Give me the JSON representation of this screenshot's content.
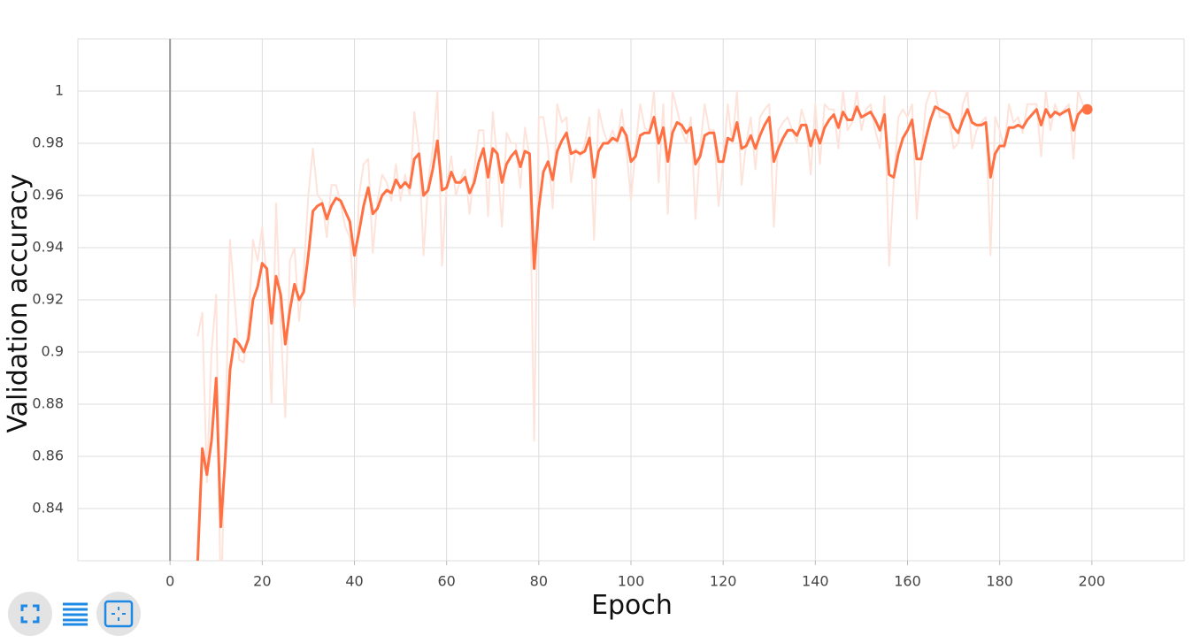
{
  "chart_data": {
    "type": "line",
    "x_label": "Epoch",
    "y_label": "Validation accuracy",
    "xlim": [
      -20,
      220
    ],
    "ylim": [
      0.82,
      1.02
    ],
    "xticks": [
      0,
      20,
      40,
      60,
      80,
      100,
      120,
      140,
      160,
      180,
      200
    ],
    "yticks": [
      0.84,
      0.86,
      0.88,
      0.9,
      0.92,
      0.94,
      0.96,
      0.98,
      1
    ],
    "grid": true,
    "x": [
      6,
      7,
      8,
      9,
      10,
      11,
      12,
      13,
      14,
      15,
      16,
      17,
      18,
      19,
      20,
      21,
      22,
      23,
      24,
      25,
      26,
      27,
      28,
      29,
      30,
      31,
      32,
      33,
      34,
      35,
      36,
      37,
      38,
      39,
      40,
      41,
      42,
      43,
      44,
      45,
      46,
      47,
      48,
      49,
      50,
      51,
      52,
      53,
      54,
      55,
      56,
      57,
      58,
      59,
      60,
      61,
      62,
      63,
      64,
      65,
      66,
      67,
      68,
      69,
      70,
      71,
      72,
      73,
      74,
      75,
      76,
      77,
      78,
      79,
      80,
      81,
      82,
      83,
      84,
      85,
      86,
      87,
      88,
      89,
      90,
      91,
      92,
      93,
      94,
      95,
      96,
      97,
      98,
      99,
      100,
      101,
      102,
      103,
      104,
      105,
      106,
      107,
      108,
      109,
      110,
      111,
      112,
      113,
      114,
      115,
      116,
      117,
      118,
      119,
      120,
      121,
      122,
      123,
      124,
      125,
      126,
      127,
      128,
      129,
      130,
      131,
      132,
      133,
      134,
      135,
      136,
      137,
      138,
      139,
      140,
      141,
      142,
      143,
      144,
      145,
      146,
      147,
      148,
      149,
      150,
      151,
      152,
      153,
      154,
      155,
      156,
      157,
      158,
      159,
      160,
      161,
      162,
      163,
      164,
      165,
      166,
      167,
      168,
      169,
      170,
      171,
      172,
      173,
      174,
      175,
      176,
      177,
      178,
      179,
      180,
      181,
      182,
      183,
      184,
      185,
      186,
      187,
      188,
      189,
      190,
      191,
      192,
      193,
      194,
      195,
      196,
      197,
      198,
      199
    ],
    "series": [
      {
        "color": "#fde3da",
        "values": [
          0.906,
          0.915,
          0.85,
          0.9,
          0.922,
          0.8,
          0.87,
          0.943,
          0.92,
          0.897,
          0.896,
          0.91,
          0.943,
          0.935,
          0.948,
          0.928,
          0.88,
          0.957,
          0.91,
          0.875,
          0.935,
          0.94,
          0.912,
          0.93,
          0.96,
          0.978,
          0.96,
          0.958,
          0.944,
          0.964,
          0.964,
          0.957,
          0.948,
          0.944,
          0.917,
          0.96,
          0.972,
          0.974,
          0.938,
          0.958,
          0.968,
          0.965,
          0.958,
          0.972,
          0.958,
          0.968,
          0.96,
          0.992,
          0.978,
          0.937,
          0.965,
          0.978,
          1.0,
          0.933,
          0.964,
          0.975,
          0.96,
          0.966,
          0.97,
          0.953,
          0.97,
          0.985,
          0.985,
          0.952,
          0.992,
          0.973,
          0.948,
          0.984,
          0.98,
          0.98,
          0.963,
          0.986,
          0.975,
          0.866,
          0.99,
          0.99,
          0.978,
          0.955,
          0.995,
          0.988,
          0.99,
          0.965,
          0.978,
          0.975,
          0.98,
          0.99,
          0.943,
          0.993,
          0.985,
          0.98,
          0.985,
          0.98,
          0.993,
          0.978,
          0.958,
          0.978,
          0.995,
          0.986,
          0.984,
          1.0,
          0.965,
          0.995,
          0.953,
          1.0,
          0.993,
          0.985,
          0.98,
          0.99,
          0.951,
          0.978,
          0.995,
          0.985,
          0.985,
          0.956,
          0.973,
          0.995,
          0.98,
          1.0,
          0.964,
          0.98,
          0.99,
          0.97,
          0.99,
          0.993,
          0.995,
          0.948,
          0.985,
          0.988,
          0.99,
          0.985,
          0.98,
          0.993,
          0.987,
          0.968,
          0.995,
          0.972,
          0.995,
          0.993,
          0.993,
          0.978,
          1.0,
          0.985,
          0.988,
          1.0,
          0.985,
          0.993,
          0.995,
          0.985,
          0.978,
          0.998,
          0.933,
          0.965,
          0.99,
          0.993,
          0.99,
          0.995,
          0.951,
          0.975,
          0.995,
          1.0,
          1.0,
          0.99,
          0.99,
          0.99,
          0.978,
          0.98,
          0.995,
          1.0,
          0.978,
          0.985,
          0.988,
          0.99,
          0.937,
          0.99,
          0.985,
          0.978,
          0.995,
          0.988,
          0.99,
          0.984,
          0.995,
          0.995,
          0.995,
          0.975,
          1.0,
          0.985,
          0.995,
          0.99,
          0.993,
          0.995,
          0.974,
          1.0,
          0.995,
          0.993
        ]
      },
      {
        "color": "#ff7043",
        "values": [
          0.82,
          0.863,
          0.853,
          0.866,
          0.89,
          0.833,
          0.86,
          0.893,
          0.905,
          0.903,
          0.9,
          0.905,
          0.92,
          0.925,
          0.934,
          0.932,
          0.911,
          0.929,
          0.922,
          0.903,
          0.916,
          0.926,
          0.92,
          0.923,
          0.937,
          0.954,
          0.956,
          0.957,
          0.951,
          0.956,
          0.959,
          0.958,
          0.954,
          0.95,
          0.937,
          0.946,
          0.956,
          0.963,
          0.953,
          0.955,
          0.96,
          0.962,
          0.961,
          0.966,
          0.963,
          0.965,
          0.963,
          0.974,
          0.976,
          0.96,
          0.962,
          0.97,
          0.981,
          0.962,
          0.963,
          0.969,
          0.965,
          0.965,
          0.967,
          0.961,
          0.965,
          0.973,
          0.978,
          0.967,
          0.978,
          0.976,
          0.965,
          0.972,
          0.975,
          0.977,
          0.971,
          0.977,
          0.976,
          0.932,
          0.955,
          0.969,
          0.973,
          0.966,
          0.977,
          0.981,
          0.984,
          0.976,
          0.977,
          0.976,
          0.977,
          0.982,
          0.967,
          0.977,
          0.98,
          0.98,
          0.982,
          0.981,
          0.986,
          0.983,
          0.973,
          0.975,
          0.983,
          0.984,
          0.984,
          0.99,
          0.98,
          0.986,
          0.973,
          0.984,
          0.988,
          0.987,
          0.984,
          0.986,
          0.972,
          0.975,
          0.983,
          0.984,
          0.984,
          0.973,
          0.973,
          0.982,
          0.981,
          0.988,
          0.978,
          0.979,
          0.983,
          0.978,
          0.983,
          0.987,
          0.99,
          0.973,
          0.978,
          0.982,
          0.985,
          0.985,
          0.983,
          0.987,
          0.987,
          0.979,
          0.985,
          0.98,
          0.986,
          0.989,
          0.991,
          0.986,
          0.992,
          0.989,
          0.989,
          0.994,
          0.99,
          0.991,
          0.992,
          0.989,
          0.985,
          0.991,
          0.968,
          0.967,
          0.976,
          0.982,
          0.985,
          0.989,
          0.974,
          0.974,
          0.982,
          0.989,
          0.994,
          0.993,
          0.992,
          0.991,
          0.986,
          0.984,
          0.989,
          0.993,
          0.988,
          0.987,
          0.987,
          0.988,
          0.967,
          0.976,
          0.979,
          0.979,
          0.986,
          0.986,
          0.987,
          0.986,
          0.989,
          0.991,
          0.993,
          0.987,
          0.993,
          0.99,
          0.992,
          0.991,
          0.992,
          0.993,
          0.985,
          0.991,
          0.993,
          0.993
        ]
      }
    ]
  }
}
